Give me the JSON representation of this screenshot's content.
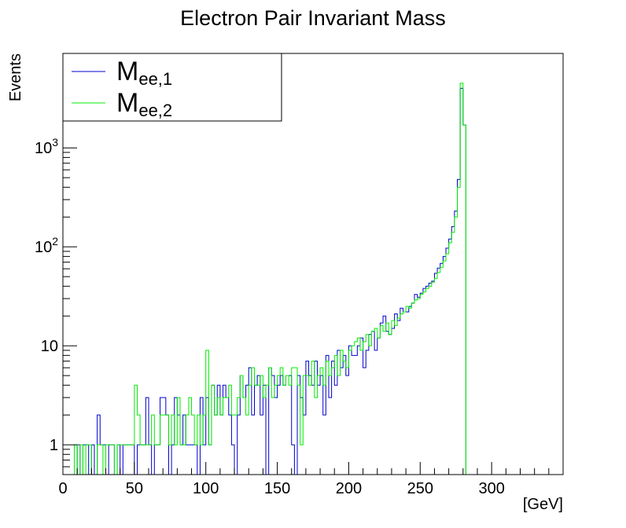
{
  "chart_data": {
    "type": "step",
    "title": "Electron Pair Invariant Mass",
    "xlabel": "[GeV]",
    "ylabel": "Events",
    "xlim": [
      0,
      350
    ],
    "ylim": [
      0.5,
      9000
    ],
    "y_scale": "log",
    "bin_width": 2,
    "x_ticks": [
      0,
      50,
      100,
      150,
      200,
      250,
      300
    ],
    "y_ticks": [
      {
        "value": 1,
        "base": "1",
        "exp": ""
      },
      {
        "value": 10,
        "base": "10",
        "exp": ""
      },
      {
        "value": 100,
        "base": "10",
        "exp": "2"
      },
      {
        "value": 1000,
        "base": "10",
        "exp": "3"
      }
    ],
    "legend": {
      "position": "top-left",
      "entries": [
        {
          "main": "M",
          "sub": "ee,1"
        },
        {
          "main": "M",
          "sub": "ee,2"
        }
      ]
    },
    "series": [
      {
        "color": "#0000cc",
        "bin_centers": [
          1,
          3,
          5,
          7,
          9,
          11,
          13,
          15,
          17,
          19,
          21,
          23,
          25,
          27,
          29,
          31,
          33,
          35,
          37,
          39,
          41,
          43,
          45,
          47,
          49,
          51,
          53,
          55,
          57,
          59,
          61,
          63,
          65,
          67,
          69,
          71,
          73,
          75,
          77,
          79,
          81,
          83,
          85,
          87,
          89,
          91,
          93,
          95,
          97,
          99,
          101,
          103,
          105,
          107,
          109,
          111,
          113,
          115,
          117,
          119,
          121,
          123,
          125,
          127,
          129,
          131,
          133,
          135,
          137,
          139,
          141,
          143,
          145,
          147,
          149,
          151,
          153,
          155,
          157,
          159,
          161,
          163,
          165,
          167,
          169,
          171,
          173,
          175,
          177,
          179,
          181,
          183,
          185,
          187,
          189,
          191,
          193,
          195,
          197,
          199,
          201,
          203,
          205,
          207,
          209,
          211,
          213,
          215,
          217,
          219,
          221,
          223,
          225,
          227,
          229,
          231,
          233,
          235,
          237,
          239,
          241,
          243,
          245,
          247,
          249,
          251,
          253,
          255,
          257,
          259,
          261,
          263,
          265,
          267,
          269,
          271,
          273,
          275,
          277,
          279,
          281,
          283,
          285,
          287,
          289,
          291,
          293,
          295,
          297,
          299,
          301,
          303,
          305,
          307,
          309,
          311,
          313,
          315,
          317,
          319,
          321,
          323,
          325,
          327,
          329,
          331,
          333,
          335,
          337,
          339,
          341,
          343,
          345,
          347,
          349
        ],
        "values": [
          0,
          0,
          0,
          0,
          0,
          1,
          0,
          1,
          1,
          0,
          1,
          0,
          2,
          1,
          1,
          0,
          1,
          1,
          0,
          1,
          0,
          1,
          1,
          1,
          1,
          0,
          1,
          1,
          1,
          3,
          1,
          0,
          1,
          1,
          3,
          3,
          2,
          0,
          1,
          3,
          2,
          1,
          2,
          1,
          1,
          1,
          1,
          0,
          3,
          1,
          3,
          1,
          4,
          2,
          4,
          2,
          4,
          3,
          2,
          1,
          0,
          2,
          5,
          3,
          4,
          6,
          2,
          4,
          5,
          2,
          4,
          0,
          6,
          5,
          3,
          4,
          5,
          4,
          5,
          5,
          1,
          0,
          5,
          3,
          2,
          7,
          5,
          4,
          7,
          4,
          5,
          2,
          8,
          3,
          7,
          4,
          9,
          6,
          8,
          5,
          10,
          8,
          8,
          10,
          12,
          6,
          9,
          13,
          14,
          9,
          12,
          17,
          20,
          14,
          13,
          15,
          21,
          18,
          24,
          22,
          22,
          25,
          27,
          33,
          31,
          34,
          38,
          40,
          43,
          45,
          54,
          61,
          68,
          80,
          97,
          120,
          160,
          230,
          480,
          4000,
          1700,
          0,
          0,
          0,
          0,
          0,
          0,
          0,
          0,
          0,
          0,
          0,
          0,
          0,
          0,
          0,
          0,
          0,
          0,
          0,
          0,
          0,
          0,
          0,
          0,
          0,
          0,
          0,
          0,
          0,
          0,
          0,
          0,
          0,
          0
        ]
      },
      {
        "color": "#00ee00",
        "bin_centers": [
          1,
          3,
          5,
          7,
          9,
          11,
          13,
          15,
          17,
          19,
          21,
          23,
          25,
          27,
          29,
          31,
          33,
          35,
          37,
          39,
          41,
          43,
          45,
          47,
          49,
          51,
          53,
          55,
          57,
          59,
          61,
          63,
          65,
          67,
          69,
          71,
          73,
          75,
          77,
          79,
          81,
          83,
          85,
          87,
          89,
          91,
          93,
          95,
          97,
          99,
          101,
          103,
          105,
          107,
          109,
          111,
          113,
          115,
          117,
          119,
          121,
          123,
          125,
          127,
          129,
          131,
          133,
          135,
          137,
          139,
          141,
          143,
          145,
          147,
          149,
          151,
          153,
          155,
          157,
          159,
          161,
          163,
          165,
          167,
          169,
          171,
          173,
          175,
          177,
          179,
          181,
          183,
          185,
          187,
          189,
          191,
          193,
          195,
          197,
          199,
          201,
          203,
          205,
          207,
          209,
          211,
          213,
          215,
          217,
          219,
          221,
          223,
          225,
          227,
          229,
          231,
          233,
          235,
          237,
          239,
          241,
          243,
          245,
          247,
          249,
          251,
          253,
          255,
          257,
          259,
          261,
          263,
          265,
          267,
          269,
          271,
          273,
          275,
          277,
          279,
          281,
          283,
          285,
          287,
          289,
          291,
          293,
          295,
          297,
          299,
          301,
          303,
          305,
          307,
          309,
          311,
          313,
          315,
          317,
          319,
          321,
          323,
          325,
          327,
          329,
          331,
          333,
          335,
          337,
          339,
          341,
          343,
          345,
          347,
          349
        ],
        "values": [
          0,
          0,
          0,
          0,
          1,
          0,
          1,
          0,
          1,
          1,
          0,
          0,
          1,
          1,
          0,
          1,
          1,
          1,
          0,
          1,
          1,
          1,
          1,
          1,
          1,
          4,
          2,
          1,
          1,
          1,
          1,
          2,
          1,
          1,
          2,
          2,
          2,
          1,
          2,
          1,
          3,
          1,
          1,
          2,
          3,
          2,
          1,
          2,
          1,
          2,
          9,
          1,
          4,
          2,
          3,
          2,
          3,
          3,
          4,
          2,
          2,
          3,
          5,
          3,
          2,
          4,
          6,
          4,
          4,
          5,
          3,
          4,
          6,
          3,
          4,
          5,
          6,
          4,
          5,
          4,
          6,
          6,
          4,
          1,
          5,
          5,
          4,
          7,
          3,
          5,
          6,
          4,
          7,
          5,
          6,
          8,
          5,
          9,
          7,
          6,
          9,
          10,
          11,
          12,
          9,
          11,
          13,
          10,
          14,
          15,
          12,
          16,
          14,
          17,
          13,
          18,
          16,
          19,
          21,
          22,
          25,
          24,
          27,
          29,
          30,
          33,
          35,
          38,
          40,
          44,
          48,
          55,
          62,
          72,
          85,
          110,
          140,
          200,
          400,
          4500,
          1700,
          0,
          0,
          0,
          0,
          0,
          0,
          0,
          0,
          0,
          0,
          0,
          0,
          0,
          0,
          0,
          0,
          0,
          0,
          0,
          0,
          0,
          0,
          0,
          0,
          0,
          0,
          0,
          0,
          0,
          0,
          0,
          0,
          0,
          0
        ]
      }
    ]
  }
}
